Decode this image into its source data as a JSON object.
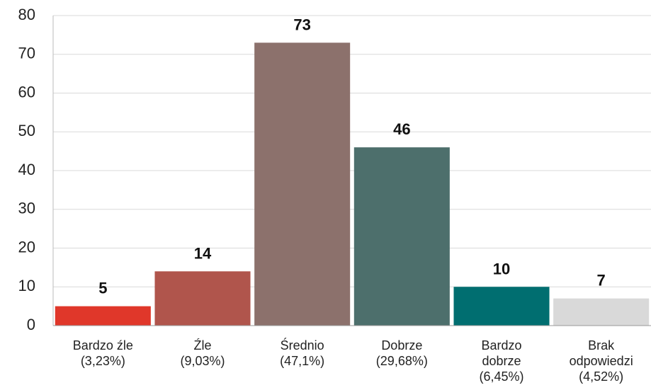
{
  "chart_data": {
    "type": "bar",
    "categories": [
      "Bardzo źle\n(3,23%)",
      "Źle\n(9,03%)",
      "Średnio\n(47,1%)",
      "Dobrze\n(29,68%)",
      "Bardzo\ndobrze\n(6,45%)",
      "Brak\nodpowiedzi\n(4,52%)"
    ],
    "values": [
      5,
      14,
      73,
      46,
      10,
      7
    ],
    "colors": [
      "#e0372a",
      "#b0554c",
      "#8c716c",
      "#4d6f6c",
      "#006e70",
      "#d9d9d9"
    ],
    "ylim": [
      0,
      80
    ],
    "yticks": [
      0,
      10,
      20,
      30,
      40,
      50,
      60,
      70,
      80
    ],
    "grid": true
  }
}
